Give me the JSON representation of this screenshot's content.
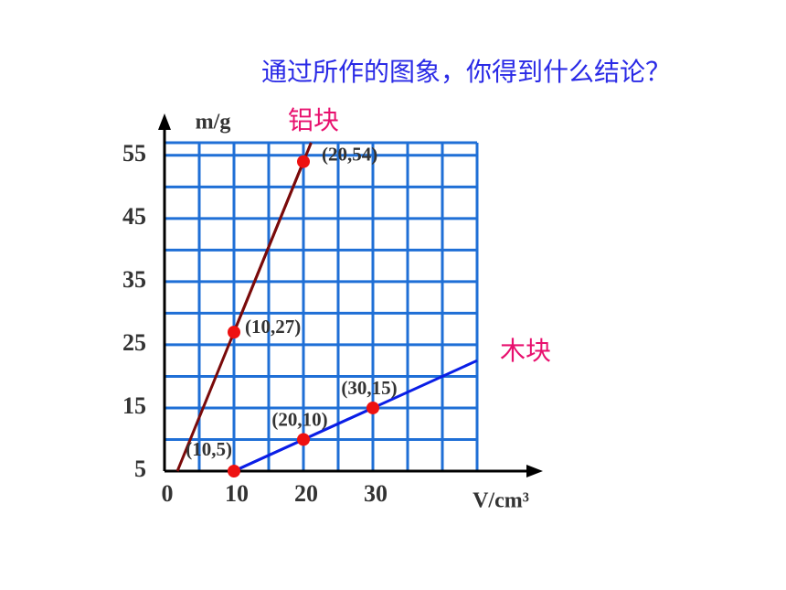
{
  "chart_data": {
    "type": "line",
    "title": "通过所作的图象，你得到什么结论？",
    "x_label": "V/cm³",
    "y_label": "m/g",
    "xlim": [
      0,
      45
    ],
    "ylim": [
      5,
      57
    ],
    "xticks": [
      0,
      10,
      20,
      30
    ],
    "yticks": [
      5,
      15,
      25,
      35,
      45,
      55
    ],
    "grid": true,
    "grid_color": "#1f6fd6",
    "marker_color": "#ee1111",
    "series": [
      {
        "name": "铝块",
        "color": "#7a0a0a",
        "x": [
          10,
          20
        ],
        "values": [
          27,
          54
        ],
        "value_labels": [
          "(10,27)",
          "(20,54)"
        ]
      },
      {
        "name": "木块",
        "color": "#0a1ee6",
        "x": [
          10,
          20,
          30
        ],
        "values": [
          5,
          10,
          15
        ],
        "value_labels": [
          "(10,5)",
          "(20,10)",
          "(30,15)"
        ]
      }
    ]
  }
}
